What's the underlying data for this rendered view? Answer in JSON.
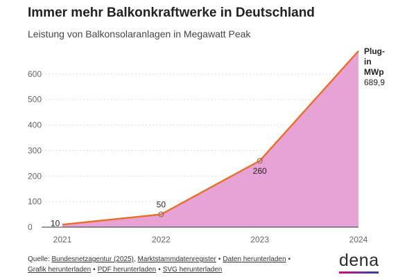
{
  "title": "Immer mehr Balkonkraftwerke in Deutschland",
  "subtitle": "Leistung von Balkonsolaranlagen in Megawatt Peak",
  "chart_data": {
    "type": "area",
    "categories": [
      "2021",
      "2022",
      "2023",
      "2024"
    ],
    "series": [
      {
        "name": "Plug-in MWp",
        "values": [
          10,
          50,
          260,
          689.9
        ]
      }
    ],
    "data_labels": [
      "10",
      "50",
      "260",
      "689,9"
    ],
    "series_label_lines": [
      "Plug-",
      "in",
      "MWp"
    ],
    "yticks": [
      0,
      100,
      200,
      300,
      400,
      500,
      600
    ],
    "ylim": [
      0,
      700
    ],
    "grid": true,
    "line_color": "#e8702a",
    "fill_color": "#e8a3d6"
  },
  "footer": {
    "prefix": "Quelle: ",
    "source_links": [
      "Bundesnetzagentur (2025)",
      "Marktstammdatenregister"
    ],
    "downloads": [
      "Daten herunterladen",
      "Grafik herunterladen",
      "PDF herunterladen",
      "SVG herunterladen"
    ]
  },
  "logo": {
    "text": "dena"
  }
}
